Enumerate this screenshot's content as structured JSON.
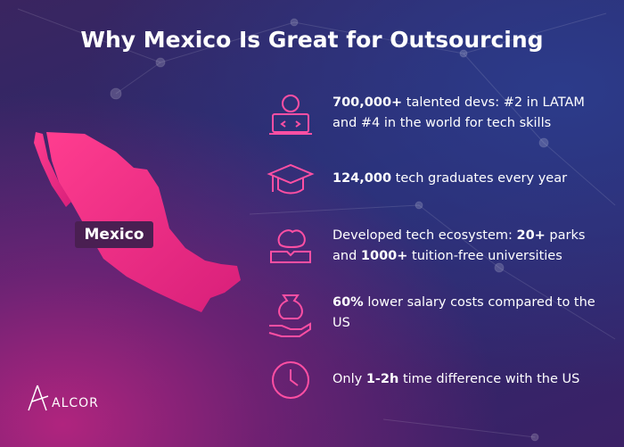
{
  "title": "Why Mexico Is Great for Outsourcing",
  "map_label": "Mexico",
  "logo": "ALCOR",
  "items": [
    {
      "segments": [
        {
          "text": "700,000+",
          "bold": true
        },
        {
          "text": " talented devs: #2 in LATAM and #4 in the world for tech skills",
          "bold": false
        }
      ]
    },
    {
      "segments": [
        {
          "text": "124,000",
          "bold": true
        },
        {
          "text": " tech graduates every year",
          "bold": false
        }
      ]
    },
    {
      "segments": [
        {
          "text": "Developed tech ecosystem: ",
          "bold": false
        },
        {
          "text": "20+",
          "bold": true
        },
        {
          "text": " parks and ",
          "bold": false
        },
        {
          "text": "1000+",
          "bold": true
        },
        {
          "text": " tuition-free universities",
          "bold": false
        }
      ]
    },
    {
      "segments": [
        {
          "text": "60%",
          "bold": true
        },
        {
          "text": " lower salary costs compared to the US",
          "bold": false
        }
      ]
    },
    {
      "segments": [
        {
          "text": "Only ",
          "bold": false
        },
        {
          "text": "1-2h",
          "bold": true
        },
        {
          "text": " time difference with the US",
          "bold": false
        }
      ]
    }
  ]
}
